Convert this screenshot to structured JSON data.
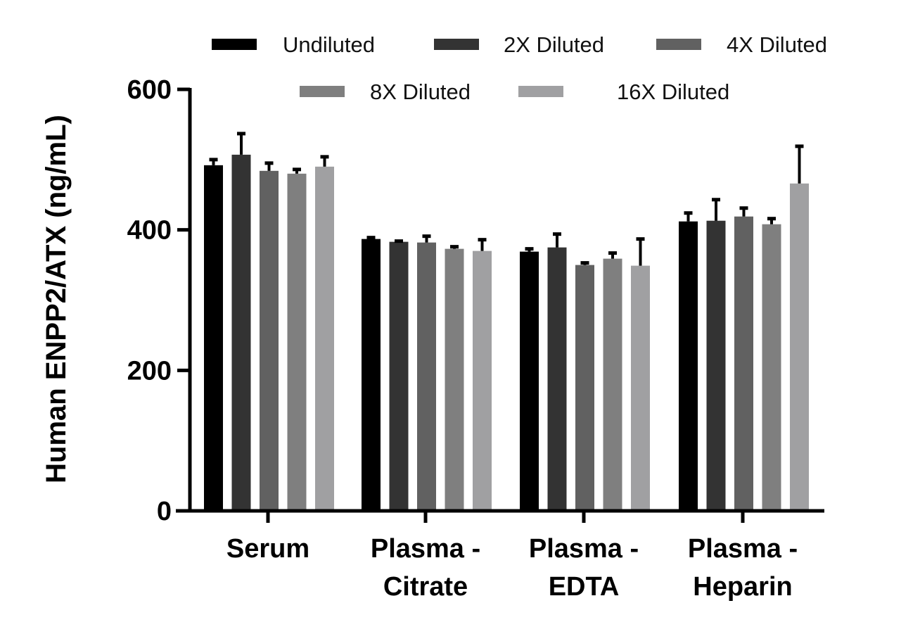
{
  "chart_data": {
    "type": "bar",
    "title": "",
    "xlabel": "",
    "ylabel": "Human ENPP2/ATX (ng/mL)",
    "ylim": [
      0,
      600
    ],
    "yticks": [
      "0",
      "200",
      "400",
      "600"
    ],
    "ytick_values": [
      0,
      200,
      400,
      600
    ],
    "grid": false,
    "legend_position": "top",
    "categories": [
      [
        "Serum"
      ],
      [
        "Plasma -",
        "Citrate"
      ],
      [
        "Plasma -",
        "EDTA"
      ],
      [
        "Plasma -",
        "Heparin"
      ]
    ],
    "series": [
      {
        "name": "Undiluted",
        "color": "#000000",
        "values": [
          492,
          387,
          369,
          412
        ],
        "errors": [
          10,
          4,
          6,
          14
        ]
      },
      {
        "name": "2X Diluted",
        "color": "#333333",
        "values": [
          507,
          383,
          375,
          413
        ],
        "errors": [
          32,
          3,
          21,
          32
        ]
      },
      {
        "name": "4X Diluted",
        "color": "#616161",
        "values": [
          484,
          382,
          350,
          419
        ],
        "errors": [
          13,
          11,
          5,
          14
        ]
      },
      {
        "name": "8X Diluted",
        "color": "#7f7f7f",
        "values": [
          480,
          373,
          359,
          408
        ],
        "errors": [
          8,
          5,
          10,
          10
        ]
      },
      {
        "name": "16X Diluted",
        "color": "#a0a0a2",
        "values": [
          490,
          370,
          349,
          466
        ],
        "errors": [
          16,
          18,
          40,
          55
        ]
      }
    ]
  }
}
